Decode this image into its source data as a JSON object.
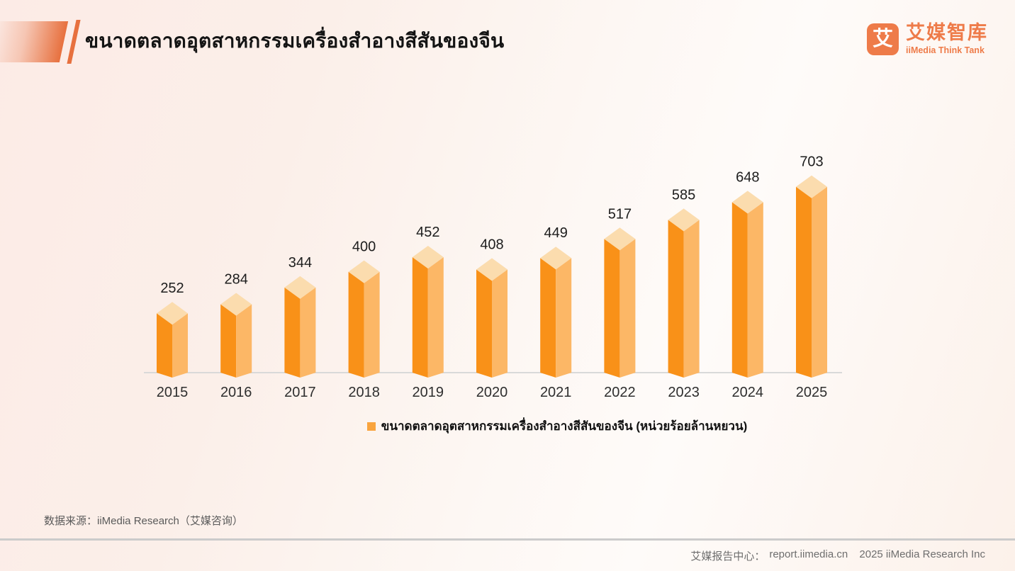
{
  "header": {
    "title": "ขนาดตลาดอุตสาหกรรมเครื่องสำอางสีสันของจีน",
    "logo": {
      "glyph": "艾",
      "name_cn": "艾媒智库",
      "name_en": "iiMedia Think Tank"
    }
  },
  "chart_data": {
    "type": "bar",
    "categories": [
      "2015",
      "2016",
      "2017",
      "2018",
      "2019",
      "2020",
      "2021",
      "2022",
      "2023",
      "2024",
      "2025"
    ],
    "values": [
      252,
      284,
      344,
      400,
      452,
      408,
      449,
      517,
      585,
      648,
      703
    ],
    "title": "ขนาดตลาดอุตสาหกรรมเครื่องสำอางสีสันของจีน",
    "xlabel": "",
    "ylabel": "",
    "unit": "ร้อยล้านหยวน (亿元)",
    "ylim": [
      0,
      750
    ],
    "grid": false,
    "data_labels": true,
    "legend_position": "bottom",
    "legend": [
      "ขนาดตลาดอุตสาหกรรมเครื่องสำอางสีสันของจีน (หน่วยร้อยล้านหยวน)"
    ],
    "bar_style": "3d-prism",
    "colors": {
      "face_left": "#f99118",
      "face_right": "#fcb766",
      "face_top": "#fbdcae"
    }
  },
  "legend": {
    "label": "ขนาดตลาดอุตสาหกรรมเครื่องสำอางสีสันของจีน (หน่วยร้อยล้านหยวน)",
    "swatch_color": "#f9a43e"
  },
  "source_note": "数据来源：iiMedia Research（艾媒咨询）",
  "footer": {
    "report_center_label": "艾媒报告中心：",
    "url": "report.iimedia.cn",
    "copyright": "2025 iiMedia Research Inc"
  },
  "colors": {
    "accent_orange": "#e7703e",
    "logo_orange": "#ee7b49",
    "axis_line": "#d9d9d9",
    "divider_gray": "#cbcbcb",
    "background_pink": "#fcebe6"
  }
}
